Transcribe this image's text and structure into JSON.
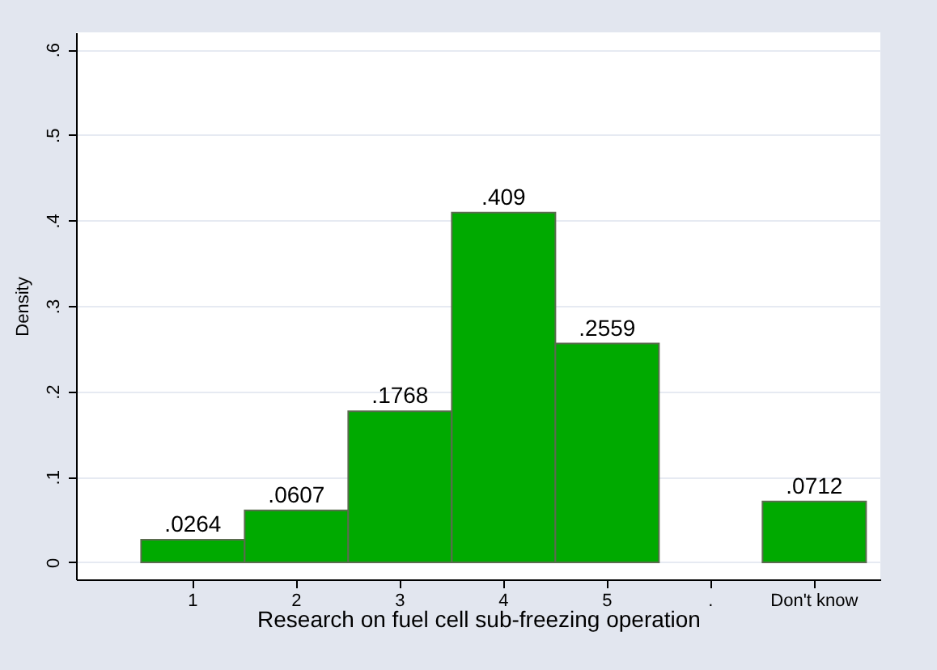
{
  "chart_data": {
    "type": "bar",
    "xlabel": "Research on fuel cell sub-freezing operation",
    "ylabel": "Density",
    "categories": [
      "1",
      "2",
      "3",
      "4",
      "5",
      ".",
      "Don't know"
    ],
    "values": [
      0.0264,
      0.0607,
      0.1768,
      0.409,
      0.2559,
      null,
      0.0712
    ],
    "value_labels": [
      ".0264",
      ".0607",
      ".1768",
      ".409",
      ".2559",
      null,
      ".0712"
    ],
    "color": "#00aa00",
    "ylim": [
      -0.02,
      0.62
    ],
    "yticks": [
      {
        "value": 0,
        "label": "0"
      },
      {
        "value": 0.1,
        "label": ".1"
      },
      {
        "value": 0.2,
        "label": ".2"
      },
      {
        "value": 0.3,
        "label": ".3"
      },
      {
        "value": 0.4,
        "label": ".4"
      },
      {
        "value": 0.5,
        "label": ".5"
      },
      {
        "value": 0.6,
        "label": ".6"
      }
    ],
    "grid": "y"
  }
}
